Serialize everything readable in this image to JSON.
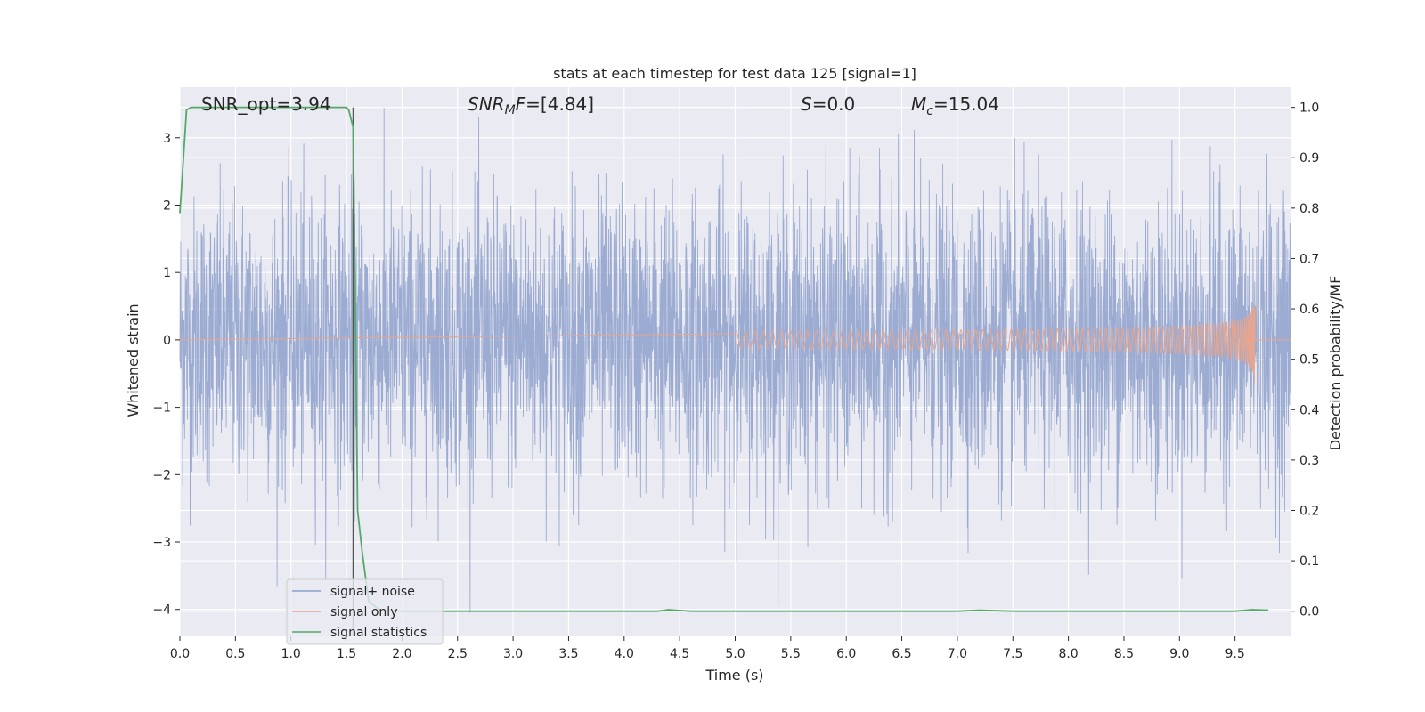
{
  "chart_data": {
    "type": "line",
    "title": "stats at each timestep for test data 125 [signal=1]",
    "xlabel": "Time (s)",
    "ylabel": "Whitened strain",
    "ylabel_right": "Detection probability/MF",
    "xlim": [
      0.0,
      10.0
    ],
    "ylim": [
      -4.4,
      3.75
    ],
    "ylim_right": [
      -0.05,
      1.04
    ],
    "x_ticks": [
      "0.0",
      "0.5",
      "1.0",
      "1.5",
      "2.0",
      "2.5",
      "3.0",
      "3.5",
      "4.0",
      "4.5",
      "5.0",
      "5.5",
      "6.0",
      "6.5",
      "7.0",
      "7.5",
      "8.0",
      "8.5",
      "9.0",
      "9.5"
    ],
    "x_tick_values": [
      0.0,
      0.5,
      1.0,
      1.5,
      2.0,
      2.5,
      3.0,
      3.5,
      4.0,
      4.5,
      5.0,
      5.5,
      6.0,
      6.5,
      7.0,
      7.5,
      8.0,
      8.5,
      9.0,
      9.5
    ],
    "y_ticks": [
      "3",
      "2",
      "1",
      "0",
      "−1",
      "−2",
      "−3",
      "−4"
    ],
    "y_tick_values": [
      3,
      2,
      1,
      0,
      -1,
      -2,
      -3,
      -4
    ],
    "y_right_ticks": [
      "1.0",
      "0.9",
      "0.8",
      "0.7",
      "0.6",
      "0.5",
      "0.4",
      "0.3",
      "0.2",
      "0.1",
      "0.0"
    ],
    "y_right_tick_values": [
      1.0,
      0.9,
      0.8,
      0.7,
      0.6,
      0.5,
      0.4,
      0.3,
      0.2,
      0.1,
      0.0
    ],
    "grid": true,
    "legend_position": "lower-left",
    "annotations": {
      "snr_opt": "SNR_opt=3.94",
      "snr_mf": "=[4.84]",
      "s_val": "=0.0",
      "mc_val": "=15.04"
    },
    "vline_x": 1.56,
    "series": [
      {
        "name": "signal+ noise",
        "color": "#8da0cb",
        "axis": "left",
        "description_range": [
          -4.05,
          3.5
        ]
      },
      {
        "name": "signal only",
        "color": "#e8a58e",
        "axis": "left",
        "chirp_end_x": 9.68,
        "chirp_peak_amplitude": 0.75
      },
      {
        "name": "signal statistics",
        "color": "#55a868",
        "axis": "right",
        "x": [
          0.0,
          0.06,
          0.1,
          0.3,
          0.6,
          1.0,
          1.3,
          1.5,
          1.52,
          1.56,
          1.6,
          1.64,
          1.7,
          1.8,
          2.0,
          3.0,
          4.0,
          4.3,
          4.4,
          4.6,
          5.0,
          6.0,
          6.5,
          7.0,
          7.2,
          7.5,
          8.0,
          9.0,
          9.5,
          9.65,
          9.8
        ],
        "values": [
          0.79,
          0.995,
          1.0,
          1.0,
          1.0,
          1.0,
          1.0,
          1.0,
          0.995,
          0.96,
          0.2,
          0.12,
          0.02,
          0.002,
          0.0,
          0.0,
          0.0,
          0.0,
          0.003,
          0.0,
          0.0,
          0.0,
          0.0,
          0.0,
          0.002,
          0.0,
          0.0,
          0.0,
          0.0,
          0.003,
          0.002
        ]
      }
    ]
  }
}
